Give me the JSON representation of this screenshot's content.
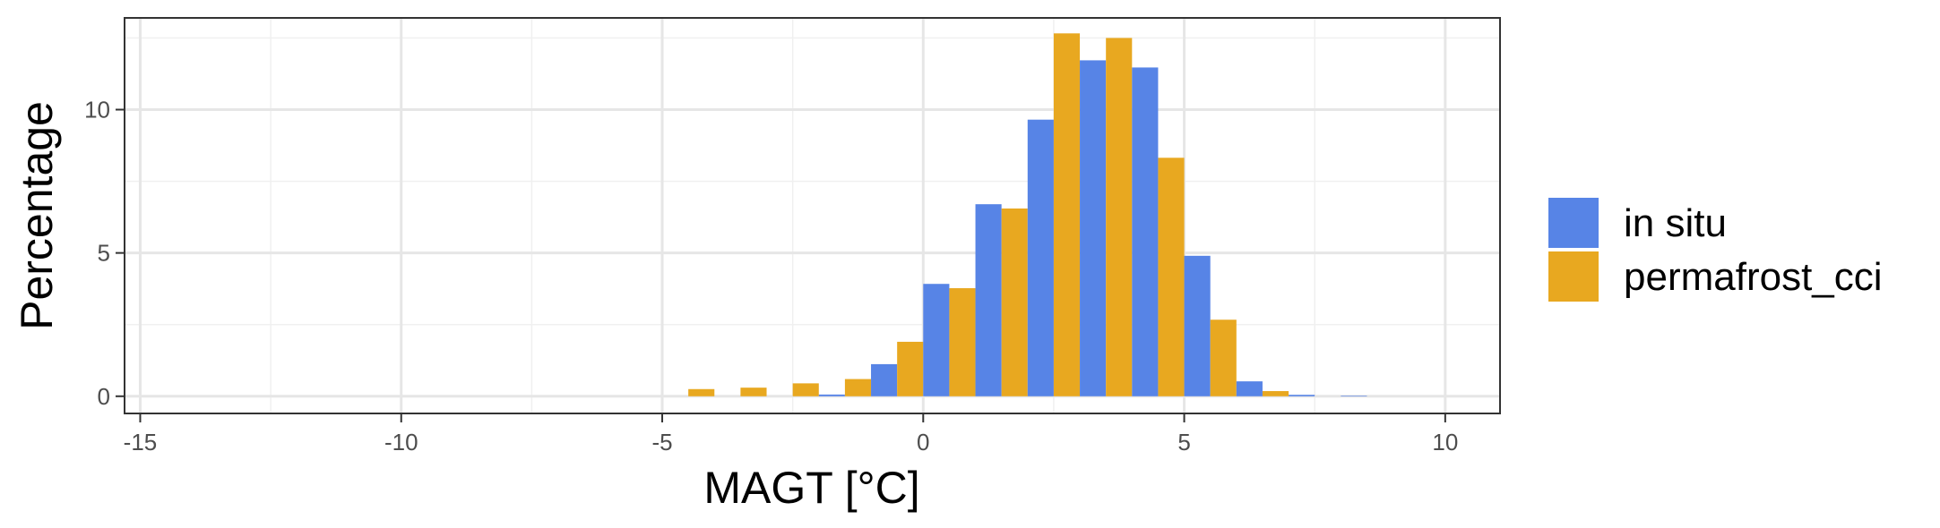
{
  "chart_data": {
    "type": "bar",
    "title": "",
    "xlabel": "MAGT [°C]",
    "ylabel": "Percentage",
    "xlim": [
      -15.3,
      11.05
    ],
    "ylim": [
      -0.6,
      13.2
    ],
    "x_ticks": [
      -15,
      -10,
      -5,
      0,
      5,
      10
    ],
    "x_tick_labels": [
      "-15",
      "-10",
      "-5",
      "0",
      "5",
      "10"
    ],
    "y_ticks": [
      0,
      5,
      10
    ],
    "y_tick_labels": [
      "0",
      "5",
      "10"
    ],
    "x_minor_ticks": [
      -12.5,
      -7.5,
      -2.5,
      2.5,
      7.5
    ],
    "y_minor_ticks": [
      2.5,
      7.5,
      12.5
    ],
    "grid": true,
    "legend_position": "right",
    "bin_width": 1,
    "bins": [
      -4.5,
      -3.5,
      -2.5,
      -1.5,
      -0.5,
      0.5,
      1.5,
      2.5,
      3.5,
      4.5,
      5.5,
      6.5,
      7.5,
      8.5
    ],
    "series": [
      {
        "name": "in situ",
        "color": "#5784E6",
        "values": [
          0,
          0,
          0,
          0.06,
          1.12,
          3.92,
          6.7,
          9.65,
          11.72,
          11.47,
          4.9,
          0.52,
          0.05,
          0.02
        ]
      },
      {
        "name": "permafrost_cci",
        "color": "#E8A820",
        "values": [
          0.25,
          0.3,
          0.45,
          0.6,
          1.9,
          3.77,
          6.55,
          12.66,
          12.5,
          8.32,
          2.67,
          0.18,
          0,
          0
        ]
      }
    ]
  }
}
